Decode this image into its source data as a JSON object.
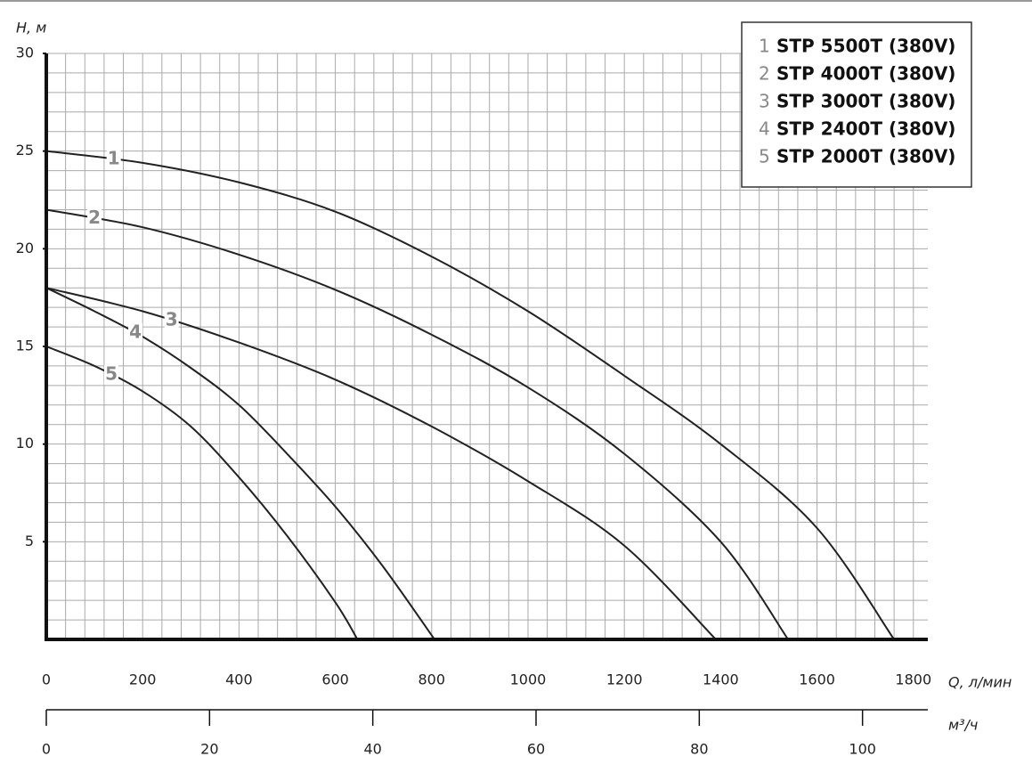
{
  "chart_data": {
    "type": "line",
    "y_label": "H, м",
    "x_label": "Q, л/мин",
    "x2_label": "м³/ч",
    "xlim": [
      0,
      1830
    ],
    "ylim": [
      0,
      30
    ],
    "x2lim": [
      0,
      108
    ],
    "xticks": [
      0,
      200,
      400,
      600,
      800,
      1000,
      1200,
      1400,
      1600,
      1800
    ],
    "yticks": [
      5,
      10,
      15,
      20,
      25,
      30
    ],
    "x2ticks": [
      0,
      20,
      40,
      60,
      80,
      100
    ],
    "grid": true,
    "grid_minor": {
      "x": 40,
      "y": 1
    },
    "legend": "top-right",
    "series": [
      {
        "label": "1",
        "name": "STP 5500T (380V)",
        "color": "#222222",
        "x": [
          0,
          200,
          400,
          600,
          800,
          1000,
          1200,
          1400,
          1600,
          1760
        ],
        "values": [
          25,
          24.4,
          23.4,
          21.9,
          19.6,
          16.8,
          13.5,
          10.0,
          5.7,
          0
        ]
      },
      {
        "label": "2",
        "name": "STP 4000T (380V)",
        "color": "#222222",
        "x": [
          0,
          200,
          400,
          600,
          800,
          1000,
          1200,
          1400,
          1540
        ],
        "values": [
          22,
          21.1,
          19.7,
          17.9,
          15.6,
          12.9,
          9.5,
          5.0,
          0
        ]
      },
      {
        "label": "3",
        "name": "STP 3000T (380V)",
        "color": "#222222",
        "x": [
          0,
          200,
          400,
          600,
          800,
          1000,
          1200,
          1390
        ],
        "values": [
          18,
          16.8,
          15.2,
          13.3,
          10.9,
          8.1,
          4.8,
          0
        ]
      },
      {
        "label": "4",
        "name": "STP 2400T (380V)",
        "color": "#222222",
        "x": [
          0,
          100,
          200,
          300,
          400,
          500,
          600,
          700,
          806
        ],
        "values": [
          18,
          16.8,
          15.5,
          13.9,
          12.0,
          9.5,
          6.8,
          3.7,
          0
        ]
      },
      {
        "label": "5",
        "name": "STP 2000T (380V)",
        "color": "#222222",
        "x": [
          0,
          100,
          200,
          300,
          400,
          500,
          600,
          646
        ],
        "values": [
          15,
          14.0,
          12.7,
          10.9,
          8.3,
          5.3,
          1.9,
          0
        ]
      }
    ]
  }
}
